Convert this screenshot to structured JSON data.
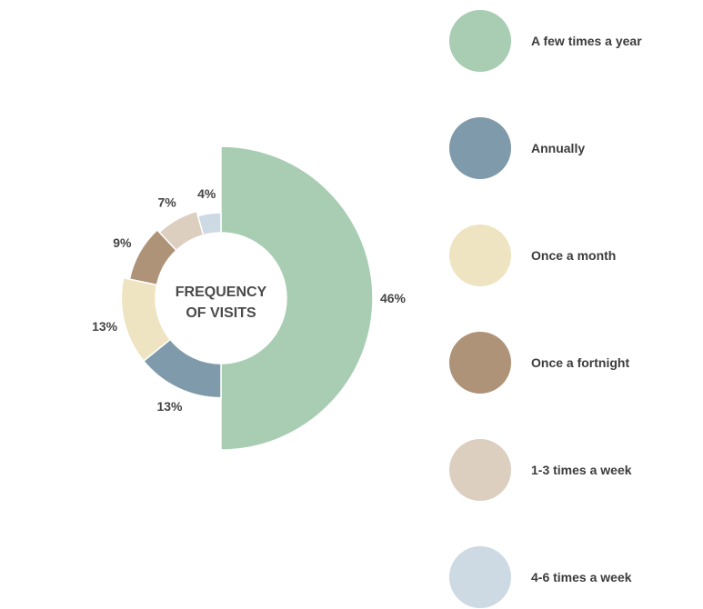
{
  "chart_data": {
    "type": "pie",
    "title": "",
    "center_label": [
      "FREQUENCY",
      "OF VISITS"
    ],
    "slices": [
      {
        "label": "A few times a year",
        "value": 46,
        "value_label": "46%",
        "color": "#a8cdb3"
      },
      {
        "label": "Annually",
        "value": 13,
        "value_label": "13%",
        "color": "#7f9aaa"
      },
      {
        "label": "Once a month",
        "value": 13,
        "value_label": "13%",
        "color": "#efe4c1"
      },
      {
        "label": "Once a fortnight",
        "value": 9,
        "value_label": "9%",
        "color": "#ae9378"
      },
      {
        "label": "1-3 times a week",
        "value": 7,
        "value_label": "7%",
        "color": "#dccfc0"
      },
      {
        "label": "4-6 times a week",
        "value": 4,
        "value_label": "4%",
        "color": "#cdd9e3"
      }
    ],
    "legend_position": "right"
  }
}
